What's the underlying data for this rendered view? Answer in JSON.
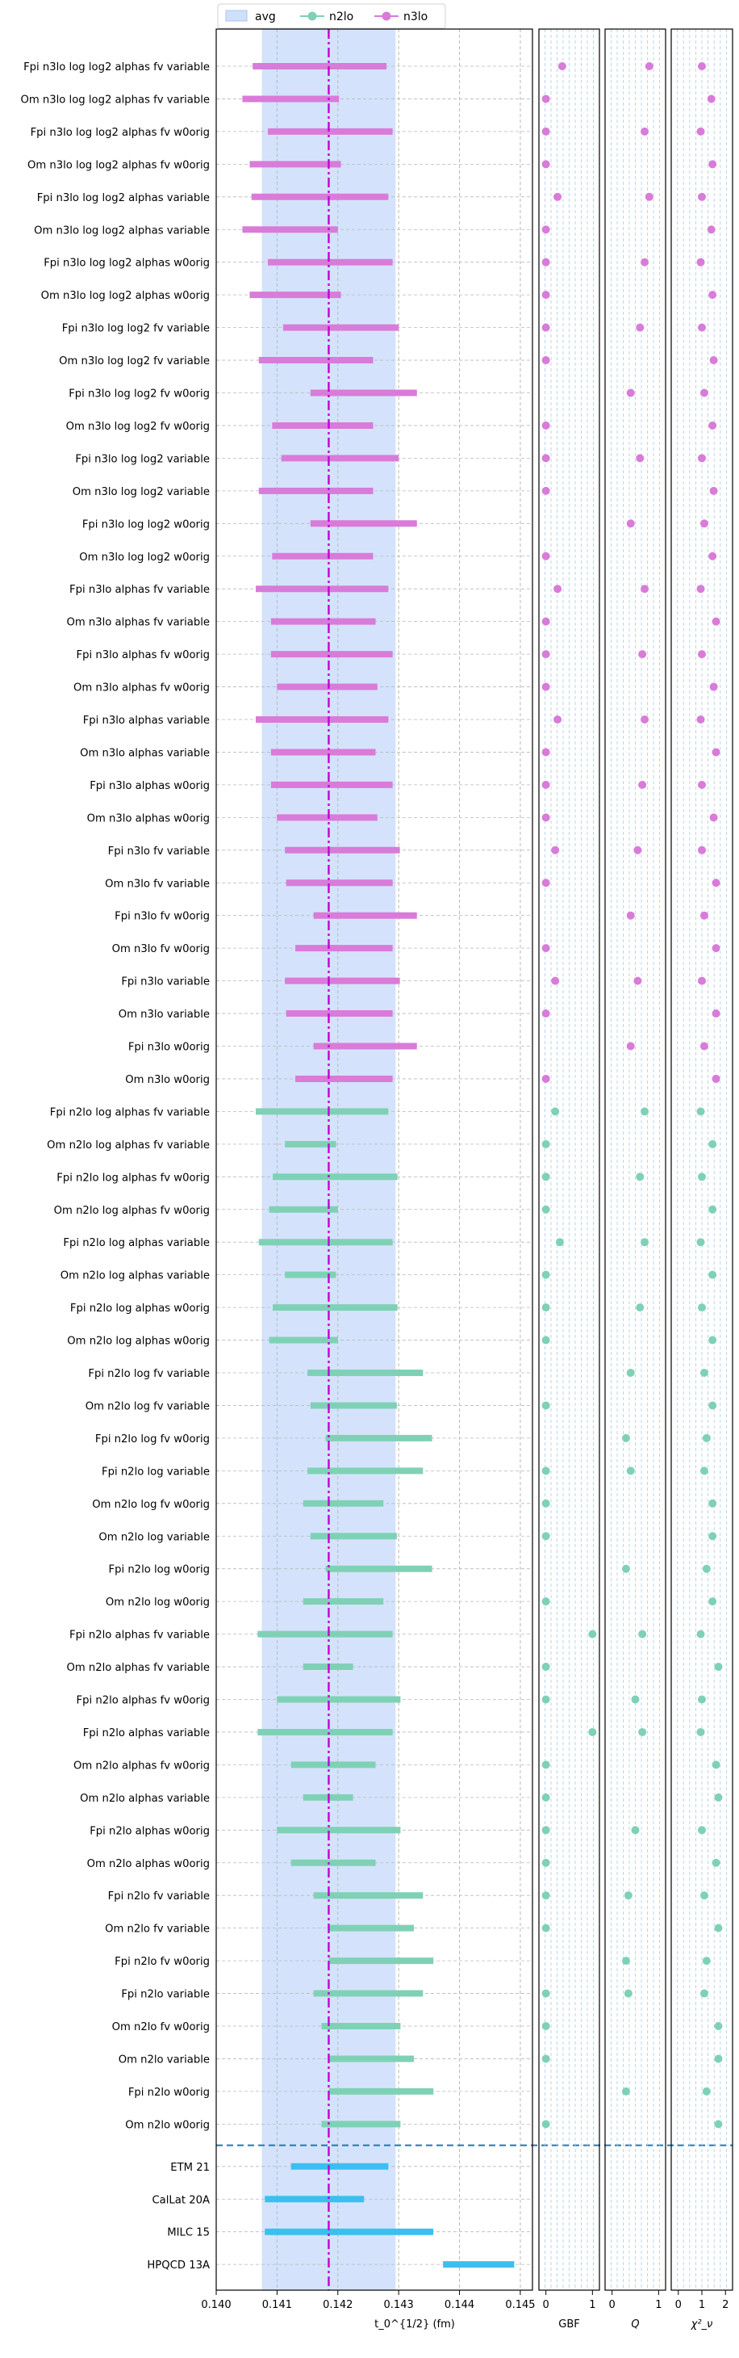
{
  "legend": {
    "placement": "top-left, outside above plot",
    "entries": [
      {
        "name": "avg",
        "kind": "band",
        "color": "#cfe0fb"
      },
      {
        "name": "n2lo",
        "kind": "line-marker",
        "color": "#7fd1b6"
      },
      {
        "name": "n3lo",
        "kind": "line-marker",
        "color": "#d97bd9"
      }
    ]
  },
  "colors": {
    "n3lo": "#d97bd9",
    "n2lo": "#7fd1b6",
    "reference": "#3bbfef",
    "avg_band": "#cfe0fb",
    "avg_line": "#c300d6",
    "separator": "#1f77b4",
    "grid": "#b8b8b8",
    "subgrid": "#a9cbe8"
  },
  "chart_data": [
    {
      "type": "forest",
      "xlabel": "t_0^{1/2} (fm)",
      "xlim": [
        0.14,
        0.1452
      ],
      "xticks": [
        "0.140",
        "0.141",
        "0.142",
        "0.143",
        "0.144",
        "0.145"
      ],
      "xtick_values": [
        0.14,
        0.141,
        0.142,
        0.143,
        0.144,
        0.145
      ],
      "avg": {
        "center": 0.14185,
        "low": 0.14075,
        "high": 0.14295
      },
      "rows": [
        {
          "label": "Fpi n3lo log log2 alphas fv variable",
          "group": "n3lo",
          "low": 0.1406,
          "high": 0.1428
        },
        {
          "label": "Om n3lo log log2 alphas fv variable",
          "group": "n3lo",
          "low": 0.14043,
          "high": 0.14202
        },
        {
          "label": "Fpi n3lo log log2 alphas fv w0orig",
          "group": "n3lo",
          "low": 0.14085,
          "high": 0.1429
        },
        {
          "label": "Om n3lo log log2 alphas fv w0orig",
          "group": "n3lo",
          "low": 0.14055,
          "high": 0.14205
        },
        {
          "label": "Fpi n3lo log log2 alphas variable",
          "group": "n3lo",
          "low": 0.14058,
          "high": 0.14283
        },
        {
          "label": "Om n3lo log log2 alphas variable",
          "group": "n3lo",
          "low": 0.14043,
          "high": 0.142
        },
        {
          "label": "Fpi n3lo log log2 alphas w0orig",
          "group": "n3lo",
          "low": 0.14085,
          "high": 0.1429
        },
        {
          "label": "Om n3lo log log2 alphas w0orig",
          "group": "n3lo",
          "low": 0.14055,
          "high": 0.14205
        },
        {
          "label": "Fpi n3lo log log2 fv variable",
          "group": "n3lo",
          "low": 0.1411,
          "high": 0.143
        },
        {
          "label": "Om n3lo log log2 fv variable",
          "group": "n3lo",
          "low": 0.1407,
          "high": 0.14258
        },
        {
          "label": "Fpi n3lo log log2 fv w0orig",
          "group": "n3lo",
          "low": 0.14155,
          "high": 0.1433
        },
        {
          "label": "Om n3lo log log2 fv w0orig",
          "group": "n3lo",
          "low": 0.14092,
          "high": 0.14258
        },
        {
          "label": "Fpi n3lo log log2 variable",
          "group": "n3lo",
          "low": 0.14107,
          "high": 0.143
        },
        {
          "label": "Om n3lo log log2 variable",
          "group": "n3lo",
          "low": 0.1407,
          "high": 0.14258
        },
        {
          "label": "Fpi n3lo log log2 w0orig",
          "group": "n3lo",
          "low": 0.14155,
          "high": 0.1433
        },
        {
          "label": "Om n3lo log log2 w0orig",
          "group": "n3lo",
          "low": 0.14092,
          "high": 0.14258
        },
        {
          "label": "Fpi n3lo alphas fv variable",
          "group": "n3lo",
          "low": 0.14065,
          "high": 0.14283
        },
        {
          "label": "Om n3lo alphas fv variable",
          "group": "n3lo",
          "low": 0.1409,
          "high": 0.14262
        },
        {
          "label": "Fpi n3lo alphas fv w0orig",
          "group": "n3lo",
          "low": 0.1409,
          "high": 0.1429
        },
        {
          "label": "Om n3lo alphas fv w0orig",
          "group": "n3lo",
          "low": 0.141,
          "high": 0.14265
        },
        {
          "label": "Fpi n3lo alphas variable",
          "group": "n3lo",
          "low": 0.14065,
          "high": 0.14283
        },
        {
          "label": "Om n3lo alphas variable",
          "group": "n3lo",
          "low": 0.1409,
          "high": 0.14262
        },
        {
          "label": "Fpi n3lo alphas w0orig",
          "group": "n3lo",
          "low": 0.1409,
          "high": 0.1429
        },
        {
          "label": "Om n3lo alphas w0orig",
          "group": "n3lo",
          "low": 0.141,
          "high": 0.14265
        },
        {
          "label": "Fpi n3lo fv variable",
          "group": "n3lo",
          "low": 0.14113,
          "high": 0.14302
        },
        {
          "label": "Om n3lo fv variable",
          "group": "n3lo",
          "low": 0.14115,
          "high": 0.1429
        },
        {
          "label": "Fpi n3lo fv w0orig",
          "group": "n3lo",
          "low": 0.1416,
          "high": 0.1433
        },
        {
          "label": "Om n3lo fv w0orig",
          "group": "n3lo",
          "low": 0.1413,
          "high": 0.1429
        },
        {
          "label": "Fpi n3lo variable",
          "group": "n3lo",
          "low": 0.14113,
          "high": 0.14302
        },
        {
          "label": "Om n3lo variable",
          "group": "n3lo",
          "low": 0.14115,
          "high": 0.1429
        },
        {
          "label": "Fpi n3lo w0orig",
          "group": "n3lo",
          "low": 0.1416,
          "high": 0.1433
        },
        {
          "label": "Om n3lo w0orig",
          "group": "n3lo",
          "low": 0.1413,
          "high": 0.1429
        },
        {
          "label": "Fpi n2lo log alphas fv variable",
          "group": "n2lo",
          "low": 0.14065,
          "high": 0.14283
        },
        {
          "label": "Om n2lo log alphas fv variable",
          "group": "n2lo",
          "low": 0.14113,
          "high": 0.14197
        },
        {
          "label": "Fpi n2lo log alphas fv w0orig",
          "group": "n2lo",
          "low": 0.14093,
          "high": 0.14298
        },
        {
          "label": "Om n2lo log alphas fv w0orig",
          "group": "n2lo",
          "low": 0.14087,
          "high": 0.142
        },
        {
          "label": "Fpi n2lo log alphas variable",
          "group": "n2lo",
          "low": 0.1407,
          "high": 0.1429
        },
        {
          "label": "Om n2lo log alphas variable",
          "group": "n2lo",
          "low": 0.14113,
          "high": 0.14197
        },
        {
          "label": "Fpi n2lo log alphas w0orig",
          "group": "n2lo",
          "low": 0.14093,
          "high": 0.14298
        },
        {
          "label": "Om n2lo log alphas w0orig",
          "group": "n2lo",
          "low": 0.14087,
          "high": 0.142
        },
        {
          "label": "Fpi n2lo log fv variable",
          "group": "n2lo",
          "low": 0.1415,
          "high": 0.1434
        },
        {
          "label": "Om n2lo log fv variable",
          "group": "n2lo",
          "low": 0.14155,
          "high": 0.14297
        },
        {
          "label": "Fpi n2lo log fv w0orig",
          "group": "n2lo",
          "low": 0.1418,
          "high": 0.14355
        },
        {
          "label": "Fpi n2lo log variable",
          "group": "n2lo",
          "low": 0.1415,
          "high": 0.1434
        },
        {
          "label": "Om n2lo log fv w0orig",
          "group": "n2lo",
          "low": 0.14143,
          "high": 0.14275
        },
        {
          "label": "Om n2lo log variable",
          "group": "n2lo",
          "low": 0.14155,
          "high": 0.14297
        },
        {
          "label": "Fpi n2lo log w0orig",
          "group": "n2lo",
          "low": 0.1418,
          "high": 0.14355
        },
        {
          "label": "Om n2lo log w0orig",
          "group": "n2lo",
          "low": 0.14143,
          "high": 0.14275
        },
        {
          "label": "Fpi n2lo alphas fv variable",
          "group": "n2lo",
          "low": 0.14068,
          "high": 0.1429
        },
        {
          "label": "Om n2lo alphas fv variable",
          "group": "n2lo",
          "low": 0.14143,
          "high": 0.14225
        },
        {
          "label": "Fpi n2lo alphas fv w0orig",
          "group": "n2lo",
          "low": 0.141,
          "high": 0.14303
        },
        {
          "label": "Fpi n2lo alphas variable",
          "group": "n2lo",
          "low": 0.14068,
          "high": 0.1429
        },
        {
          "label": "Om n2lo alphas fv w0orig",
          "group": "n2lo",
          "low": 0.14123,
          "high": 0.14262
        },
        {
          "label": "Om n2lo alphas variable",
          "group": "n2lo",
          "low": 0.14143,
          "high": 0.14225
        },
        {
          "label": "Fpi n2lo alphas w0orig",
          "group": "n2lo",
          "low": 0.141,
          "high": 0.14303
        },
        {
          "label": "Om n2lo alphas w0orig",
          "group": "n2lo",
          "low": 0.14123,
          "high": 0.14262
        },
        {
          "label": "Fpi n2lo fv variable",
          "group": "n2lo",
          "low": 0.1416,
          "high": 0.1434
        },
        {
          "label": "Om n2lo fv variable",
          "group": "n2lo",
          "low": 0.14185,
          "high": 0.14325
        },
        {
          "label": "Fpi n2lo fv w0orig",
          "group": "n2lo",
          "low": 0.14185,
          "high": 0.14357
        },
        {
          "label": "Fpi n2lo variable",
          "group": "n2lo",
          "low": 0.1416,
          "high": 0.1434
        },
        {
          "label": "Om n2lo fv w0orig",
          "group": "n2lo",
          "low": 0.14173,
          "high": 0.14303
        },
        {
          "label": "Om n2lo variable",
          "group": "n2lo",
          "low": 0.14185,
          "high": 0.14325
        },
        {
          "label": "Fpi n2lo w0orig",
          "group": "n2lo",
          "low": 0.14185,
          "high": 0.14357
        },
        {
          "label": "Om n2lo w0orig",
          "group": "n2lo",
          "low": 0.14173,
          "high": 0.14303
        },
        {
          "label": "ETM 21",
          "group": "reference",
          "low": 0.14123,
          "high": 0.14283
        },
        {
          "label": "CalLat 20A",
          "group": "reference",
          "low": 0.1408,
          "high": 0.14243
        },
        {
          "label": "MILC 15",
          "group": "reference",
          "low": 0.1408,
          "high": 0.14357
        },
        {
          "label": "HPQCD 13A",
          "group": "reference",
          "low": 0.14373,
          "high": 0.1449
        }
      ]
    },
    {
      "type": "scatter",
      "xlabel": "GBF",
      "xlim": [
        -0.15,
        1.15
      ],
      "xticks": [
        "0",
        "1"
      ],
      "xtick_values": [
        0,
        1
      ],
      "values": [
        0.35,
        0.0,
        0.0,
        0.0,
        0.25,
        0.0,
        0.0,
        0.0,
        0.0,
        0.0,
        null,
        0.0,
        0.0,
        0.0,
        null,
        0.0,
        0.25,
        0.0,
        0.0,
        0.0,
        0.25,
        0.0,
        0.0,
        0.0,
        0.2,
        0.0,
        null,
        0.0,
        0.2,
        0.0,
        null,
        0.0,
        0.2,
        0.0,
        0.0,
        0.0,
        0.3,
        0.0,
        0.0,
        0.0,
        null,
        0.0,
        null,
        0.0,
        0.0,
        0.0,
        null,
        0.0,
        1.0,
        0.0,
        0.0,
        1.0,
        0.0,
        0.0,
        0.0,
        0.0,
        0.0,
        0.0,
        null,
        0.0,
        0.0,
        0.0,
        null,
        0.0
      ]
    },
    {
      "type": "scatter",
      "xlabel": "Q",
      "xlim": [
        -0.15,
        1.15
      ],
      "xticks": [
        "0",
        "1"
      ],
      "xtick_values": [
        0,
        1
      ],
      "values": [
        0.8,
        null,
        0.7,
        null,
        0.8,
        null,
        0.7,
        null,
        0.6,
        null,
        0.4,
        null,
        0.6,
        null,
        0.4,
        null,
        0.7,
        null,
        0.65,
        null,
        0.7,
        null,
        0.65,
        null,
        0.55,
        null,
        0.4,
        null,
        0.55,
        null,
        0.4,
        null,
        0.7,
        null,
        0.6,
        null,
        0.7,
        null,
        0.6,
        null,
        0.4,
        null,
        0.3,
        0.4,
        null,
        null,
        0.3,
        null,
        0.65,
        null,
        0.5,
        0.65,
        null,
        null,
        0.5,
        null,
        0.35,
        null,
        0.3,
        0.35,
        null,
        null,
        0.3,
        null
      ]
    },
    {
      "type": "scatter",
      "xlabel": "χ²_ν",
      "xlim": [
        -0.3,
        2.3
      ],
      "xticks": [
        "0",
        "1",
        "2"
      ],
      "xtick_values": [
        0,
        1,
        2
      ],
      "values": [
        1.0,
        1.4,
        0.95,
        1.45,
        1.0,
        1.4,
        0.95,
        1.45,
        1.0,
        1.5,
        1.1,
        1.45,
        1.0,
        1.5,
        1.1,
        1.45,
        0.95,
        1.6,
        1.0,
        1.5,
        0.95,
        1.6,
        1.0,
        1.5,
        1.0,
        1.6,
        1.1,
        1.6,
        1.0,
        1.6,
        1.1,
        1.6,
        0.95,
        1.45,
        1.0,
        1.45,
        0.95,
        1.45,
        1.0,
        1.45,
        1.1,
        1.45,
        1.2,
        1.1,
        1.45,
        1.45,
        1.2,
        1.45,
        0.95,
        1.7,
        1.0,
        0.95,
        1.6,
        1.7,
        1.0,
        1.6,
        1.1,
        1.7,
        1.2,
        1.1,
        1.7,
        1.7,
        1.2,
        1.7
      ]
    }
  ]
}
